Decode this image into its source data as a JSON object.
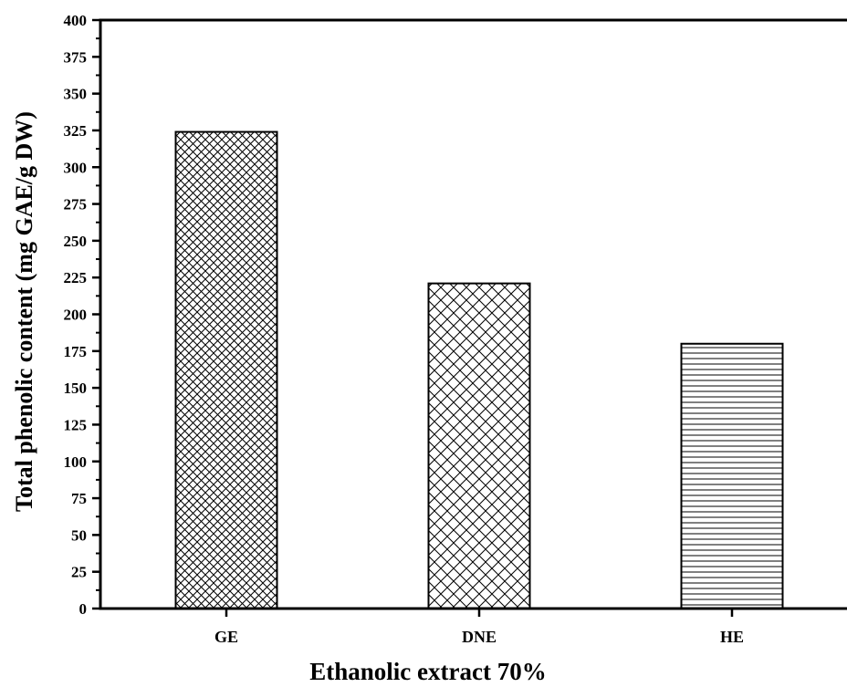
{
  "chart_data": {
    "type": "bar",
    "title": "",
    "xlabel": "Ethanolic extract 70%",
    "ylabel": "Total phenolic content (mg GAE/g DW)",
    "categories": [
      "GE",
      "DNE",
      "HE"
    ],
    "values": [
      324,
      221,
      180
    ],
    "patterns": [
      "crosshatch-fine",
      "crosshatch-diagonal",
      "horizontal-lines"
    ],
    "ylim": [
      0,
      400
    ],
    "yticks": [
      "0",
      "25",
      "50",
      "75",
      "100",
      "125",
      "150",
      "175",
      "200",
      "225",
      "250",
      "275",
      "300",
      "325",
      "350",
      "375",
      "400"
    ],
    "grid": false,
    "legend": "none",
    "colors": {
      "bar_fill": "#ffffff",
      "bar_stroke": "#000000",
      "axis": "#000000"
    }
  }
}
